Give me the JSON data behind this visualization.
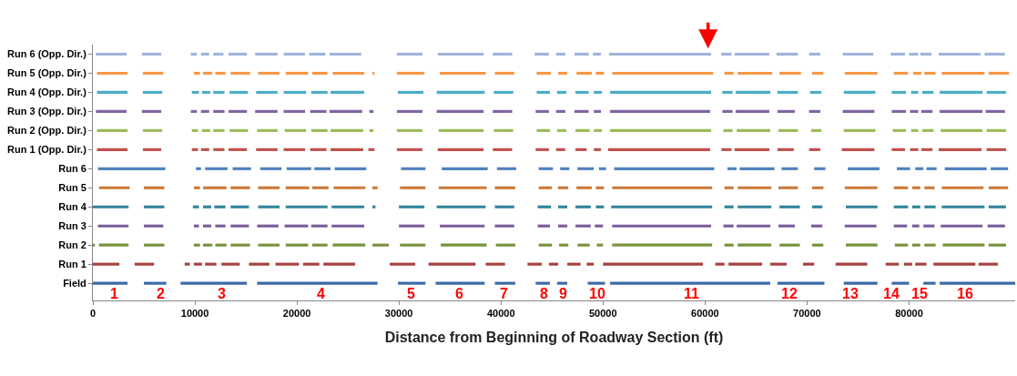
{
  "chart_data": {
    "type": "bar",
    "orientation": "horizontal",
    "xlabel": "Distance from Beginning of Roadway Section (ft)",
    "xlim": [
      0,
      90400
    ],
    "xticks": [
      0,
      10000,
      20000,
      30000,
      40000,
      50000,
      60000,
      70000,
      80000
    ],
    "categories": [
      "Run 6 (Opp. Dir.)",
      "Run 5 (Opp. Dir.)",
      "Run 4 (Opp. Dir.)",
      "Run 3 (Opp. Dir.)",
      "Run 2 (Opp. Dir.)",
      "Run 1 (Opp. Dir.)",
      "Run 6",
      "Run 5",
      "Run 4",
      "Run 3",
      "Run 2",
      "Run 1",
      "Field"
    ],
    "series": [
      {
        "colors": [
          "#9fb4db",
          "#f79646",
          "#4bacc6",
          "#8064a2",
          "#9bbb59",
          "#c0504d",
          "#4f81bd",
          "#cc7a38",
          "#31849b",
          "#7a5d99",
          "#77933c",
          "#a5413e",
          "#3c6aa8"
        ],
        "base": [
          300,
          400,
          400,
          300,
          400,
          400,
          500,
          600,
          0,
          500,
          0,
          0,
          0
        ],
        "values": [
          3000,
          3000,
          3000,
          3000,
          3000,
          3000,
          6600,
          3000,
          3500,
          3000,
          200,
          2600,
          3400
        ]
      },
      {
        "colors": [
          "#9fb4db",
          "#f79646",
          "#4bacc6",
          "#8064a2",
          "#9bbb59",
          "#c0504d",
          "#4f81bd",
          "#cc7a38",
          "#31849b",
          "#7a5d99",
          "#77933c",
          "#a5413e",
          "#3c6aa8"
        ],
        "base": [
          4800,
          4900,
          4900,
          4800,
          4900,
          4900,
          10100,
          5000,
          5000,
          5000,
          600,
          4100,
          5000
        ],
        "values": [
          1900,
          2000,
          1900,
          1900,
          1900,
          1800,
          500,
          2000,
          2000,
          1900,
          2900,
          1900,
          2200
        ]
      },
      {
        "colors": [
          "#9fb4db",
          "#f79646",
          "#4bacc6",
          "#8064a2",
          "#9bbb59",
          "#c0504d",
          "#4f81bd",
          "#cc7a38",
          "#31849b",
          "#7a5d99",
          "#77933c",
          "#a5413e",
          "#3c6aa8"
        ],
        "base": [
          9600,
          9900,
          9700,
          9600,
          9700,
          9700,
          11000,
          9900,
          9800,
          9900,
          5000,
          9000,
          8600
        ],
        "values": [
          600,
          600,
          700,
          600,
          600,
          600,
          2200,
          600,
          600,
          500,
          2000,
          500,
          6500
        ]
      },
      {
        "colors": [
          "#9fb4db",
          "#f79646",
          "#4bacc6",
          "#8064a2",
          "#9bbb59",
          "#c0504d",
          "#4f81bd",
          "#cc7a38",
          "#31849b",
          "#7a5d99",
          "#77933c",
          "#a5413e",
          "#3c6aa8"
        ],
        "base": [
          10600,
          10800,
          10700,
          10600,
          10700,
          10600,
          13700,
          10800,
          10800,
          10800,
          9900,
          9900,
          16100
        ],
        "values": [
          800,
          900,
          800,
          800,
          800,
          800,
          1800,
          2300,
          800,
          800,
          600,
          800,
          11800
        ]
      },
      {
        "colors": [
          "#9fb4db",
          "#f79646",
          "#4bacc6",
          "#8064a2",
          "#9bbb59",
          "#c0504d",
          "#4f81bd",
          "#cc7a38",
          "#31849b",
          "#7a5d99",
          "#77933c",
          "#a5413e",
          "#3c6aa8"
        ],
        "base": [
          11800,
          12000,
          11800,
          11800,
          11800,
          11800,
          16400,
          13500,
          11900,
          12000,
          10800,
          11000,
          29900
        ],
        "values": [
          1000,
          1000,
          1100,
          1100,
          1100,
          1100,
          2100,
          1900,
          1100,
          1000,
          900,
          1100,
          2700
        ]
      },
      {
        "colors": [
          "#9fb4db",
          "#f79646",
          "#4bacc6",
          "#8064a2",
          "#9bbb59",
          "#c0504d",
          "#4f81bd",
          "#cc7a38",
          "#31849b",
          "#7a5d99",
          "#77933c",
          "#a5413e",
          "#3c6aa8"
        ],
        "base": [
          13300,
          13500,
          13400,
          13300,
          13400,
          13300,
          19000,
          16200,
          13500,
          13500,
          12000,
          12600,
          33600
        ],
        "values": [
          1800,
          1900,
          1800,
          1800,
          1800,
          1800,
          2400,
          2100,
          1800,
          1800,
          1100,
          1800,
          4800
        ]
      },
      {
        "colors": [
          "#9fb4db",
          "#f79646",
          "#4bacc6",
          "#8064a2",
          "#9bbb59",
          "#c0504d",
          "#4f81bd",
          "#cc7a38",
          "#31849b",
          "#7a5d99",
          "#77933c",
          "#a5413e",
          "#3c6aa8"
        ],
        "base": [
          15900,
          16200,
          16000,
          15900,
          16100,
          16000,
          21700,
          18900,
          16200,
          16100,
          13500,
          15300,
          39400
        ],
        "values": [
          2200,
          2100,
          2100,
          2200,
          2000,
          2100,
          1600,
          2300,
          2100,
          2100,
          1900,
          2000,
          2000
        ]
      },
      {
        "colors": [
          "#9fb4db",
          "#f79646",
          "#4bacc6",
          "#8064a2",
          "#9bbb59",
          "#c0504d",
          "#4f81bd",
          "#cc7a38",
          "#31849b",
          "#7a5d99",
          "#77933c",
          "#a5413e",
          "#3c6aa8"
        ],
        "base": [
          18700,
          18900,
          18700,
          18700,
          18800,
          18700,
          23700,
          21500,
          18900,
          18800,
          16200,
          17900,
          43400
        ],
        "values": [
          2100,
          2200,
          2200,
          2100,
          2100,
          2100,
          3100,
          1600,
          4100,
          2300,
          2100,
          2300,
          1400
        ]
      },
      {
        "colors": [
          "#9fb4db",
          "#f79646",
          "#4bacc6",
          "#8064a2",
          "#9bbb59",
          "#c0504d",
          "#4f81bd",
          "#cc7a38",
          "#31849b",
          "#7a5d99",
          "#77933c",
          "#a5413e",
          "#3c6aa8"
        ],
        "base": [
          21200,
          21500,
          21400,
          21300,
          21400,
          21300,
          30200,
          23600,
          23400,
          21400,
          18900,
          20600,
          45500
        ],
        "values": [
          1600,
          1500,
          1600,
          1600,
          1600,
          1600,
          2400,
          3100,
          3200,
          1600,
          2200,
          1600,
          1000
        ]
      },
      {
        "colors": [
          "#9fb4db",
          "#f79646",
          "#4bacc6",
          "#8064a2",
          "#9bbb59",
          "#c0504d",
          "#4f81bd",
          "#cc7a38",
          "#31849b",
          "#7a5d99",
          "#77933c",
          "#a5413e",
          "#3c6aa8"
        ],
        "base": [
          23200,
          23500,
          23300,
          23200,
          23300,
          23300,
          34200,
          27400,
          27400,
          23400,
          21500,
          22600,
          48500
        ],
        "values": [
          3100,
          3100,
          3300,
          3200,
          3200,
          3200,
          4500,
          500,
          300,
          3200,
          1500,
          3100,
          1700
        ]
      },
      {
        "colors": [
          "#9fb4db",
          "#f79646",
          "#4bacc6",
          "#8064a2",
          "#9bbb59",
          "#c0504d",
          "#4f81bd",
          "#cc7a38",
          "#31849b",
          "#7a5d99",
          "#77933c",
          "#a5413e",
          "#3c6aa8"
        ],
        "base": [
          29800,
          27400,
          29900,
          27100,
          27100,
          27000,
          39600,
          30100,
          30000,
          30000,
          23500,
          29100,
          50700
        ],
        "values": [
          2500,
          200,
          2500,
          400,
          400,
          600,
          1900,
          2500,
          2500,
          2500,
          3200,
          2500,
          15700
        ]
      },
      {
        "colors": [
          "#9fb4db",
          "#f79646",
          "#4bacc6",
          "#8064a2",
          "#9bbb59",
          "#c0504d",
          "#4f81bd",
          "#cc7a38",
          "#31849b",
          "#7a5d99",
          "#77933c",
          "#a5413e",
          "#3c6aa8"
        ],
        "base": [
          33800,
          29800,
          33700,
          29800,
          29800,
          29800,
          43700,
          33900,
          33700,
          34000,
          27400,
          32900,
          67100
        ],
        "values": [
          4500,
          2700,
          4700,
          2500,
          2500,
          2500,
          1400,
          4700,
          4800,
          4400,
          1600,
          4600,
          4600
        ]
      },
      {
        "colors": [
          "#9fb4db",
          "#f79646",
          "#4bacc6",
          "#8064a2",
          "#9bbb59",
          "#c0504d",
          "#4f81bd",
          "#cc7a38",
          "#31849b",
          "#7a5d99",
          "#77933c",
          "#a5413e",
          "#3c6aa8"
        ],
        "base": [
          39200,
          34000,
          39300,
          33700,
          33900,
          33800,
          45800,
          39400,
          39400,
          39400,
          30100,
          38500,
          73600
        ],
        "values": [
          1900,
          4500,
          1900,
          4600,
          4400,
          4500,
          900,
          2000,
          1900,
          1900,
          2500,
          1900,
          3300
        ]
      },
      {
        "colors": [
          "#9fb4db",
          "#f79646",
          "#4bacc6",
          "#8064a2",
          "#9bbb59",
          "#c0504d",
          "#4f81bd",
          "#cc7a38",
          "#31849b",
          "#7a5d99",
          "#77933c",
          "#a5413e",
          "#3c6aa8"
        ],
        "base": [
          43300,
          39400,
          43500,
          39200,
          39300,
          39200,
          47500,
          43700,
          43600,
          43600,
          34100,
          42600,
          78300
        ],
        "values": [
          1400,
          1900,
          1300,
          1900,
          1900,
          1900,
          1600,
          1300,
          1300,
          1200,
          4500,
          1400,
          1700
        ]
      },
      {
        "colors": [
          "#9fb4db",
          "#f79646",
          "#4bacc6",
          "#8064a2",
          "#9bbb59",
          "#c0504d",
          "#4f81bd",
          "#cc7a38",
          "#31849b",
          "#7a5d99",
          "#77933c",
          "#a5413e",
          "#3c6aa8"
        ],
        "base": [
          45400,
          43500,
          45500,
          43400,
          43500,
          43400,
          49600,
          45600,
          45600,
          45600,
          39500,
          44700,
          81400
        ],
        "values": [
          900,
          1400,
          900,
          1300,
          1300,
          1300,
          700,
          1000,
          900,
          900,
          1900,
          900,
          1200
        ]
      },
      {
        "colors": [
          "#9fb4db",
          "#f79646",
          "#4bacc6",
          "#8064a2",
          "#9bbb59",
          "#c0504d",
          "#4f81bd",
          "#cc7a38",
          "#31849b",
          "#7a5d99",
          "#77933c",
          "#a5413e",
          "#3c6aa8"
        ],
        "base": [
          47200,
          45600,
          47300,
          45400,
          45500,
          45400,
          51100,
          47400,
          47300,
          47300,
          43700,
          46500,
          83000
        ],
        "values": [
          1400,
          900,
          1300,
          900,
          900,
          900,
          9800,
          1500,
          1500,
          1500,
          1300,
          1300,
          7400
        ]
      },
      {
        "colors": [
          "#9fb4db",
          "#f79646",
          "#4bacc6",
          "#8064a2",
          "#9bbb59",
          "#c0504d",
          "#4f81bd",
          "#cc7a38",
          "#31849b",
          "#7a5d99",
          "#77933c",
          "#a5413e",
          "#3c6aa8"
        ],
        "base": [
          49000,
          47400,
          49100,
          47200,
          47300,
          47300,
          62200,
          49300,
          49300,
          49200,
          45700,
          48400,
          null
        ],
        "values": [
          800,
          1500,
          800,
          1400,
          1400,
          1100,
          900,
          800,
          800,
          800,
          900,
          700,
          null
        ]
      },
      {
        "colors": [
          "#9fb4db",
          "#f79646",
          "#4bacc6",
          "#8064a2",
          "#9bbb59",
          "#c0504d",
          "#4f81bd",
          "#cc7a38",
          "#31849b",
          "#7a5d99",
          "#77933c",
          "#a5413e",
          "#3c6aa8"
        ],
        "base": [
          50600,
          49300,
          50700,
          49100,
          49100,
          49100,
          63400,
          50900,
          50800,
          50900,
          47500,
          50000,
          null
        ],
        "values": [
          10000,
          800,
          9900,
          700,
          800,
          700,
          3400,
          9800,
          9900,
          9700,
          1200,
          9800,
          null
        ]
      },
      {
        "colors": [
          "#9fb4db",
          "#f79646",
          "#4bacc6",
          "#8064a2",
          "#9bbb59",
          "#c0504d",
          "#4f81bd",
          "#cc7a38",
          "#31849b",
          "#7a5d99",
          "#77933c",
          "#a5413e",
          "#3c6aa8"
        ],
        "base": [
          61600,
          50900,
          61700,
          50700,
          50700,
          50500,
          67500,
          61900,
          61900,
          61800,
          49400,
          61000,
          null
        ],
        "values": [
          1000,
          9900,
          1000,
          9800,
          9900,
          10000,
          1600,
          900,
          900,
          1000,
          600,
          900,
          null
        ]
      },
      {
        "colors": [
          "#9fb4db",
          "#f79646",
          "#4bacc6",
          "#8064a2",
          "#9bbb59",
          "#c0504d",
          "#4f81bd",
          "#cc7a38",
          "#31849b",
          "#7a5d99",
          "#77933c",
          "#a5413e",
          "#3c6aa8"
        ],
        "base": [
          62900,
          61900,
          63000,
          61700,
          61800,
          61600,
          70700,
          63200,
          63200,
          63100,
          50900,
          62300,
          null
        ],
        "values": [
          3400,
          900,
          3400,
          1000,
          900,
          1000,
          1100,
          3300,
          3300,
          3300,
          9800,
          3300,
          null
        ]
      },
      {
        "colors": [
          "#9fb4db",
          "#f79646",
          "#4bacc6",
          "#8064a2",
          "#9bbb59",
          "#c0504d",
          "#4f81bd",
          "#cc7a38",
          "#31849b",
          "#7a5d99",
          "#77933c",
          "#a5413e",
          "#3c6aa8"
        ],
        "base": [
          67000,
          63200,
          67100,
          63000,
          63100,
          62900,
          74000,
          67200,
          67300,
          67200,
          61900,
          66400,
          null
        ],
        "values": [
          2100,
          3400,
          2000,
          3300,
          3300,
          3400,
          3100,
          1900,
          2000,
          1600,
          900,
          1600,
          null
        ]
      },
      {
        "colors": [
          "#9fb4db",
          "#f79646",
          "#4bacc6",
          "#8064a2",
          "#9bbb59",
          "#c0504d",
          "#4f81bd",
          "#cc7a38",
          "#31849b",
          "#7a5d99",
          "#77933c",
          "#a5413e",
          "#3c6aa8"
        ],
        "base": [
          70200,
          67300,
          70300,
          67100,
          67200,
          67100,
          78800,
          70500,
          70500,
          70400,
          63200,
          69600,
          null
        ],
        "values": [
          1100,
          2100,
          1100,
          1700,
          1900,
          1600,
          1300,
          1100,
          1000,
          1100,
          3300,
          1100,
          null
        ]
      },
      {
        "colors": [
          "#9fb4db",
          "#f79646",
          "#4bacc6",
          "#8064a2",
          "#9bbb59",
          "#c0504d",
          "#4f81bd",
          "#cc7a38",
          "#31849b",
          "#7a5d99",
          "#77933c",
          "#a5413e",
          "#3c6aa8"
        ],
        "base": [
          73500,
          70500,
          73600,
          70200,
          70400,
          70200,
          80600,
          73700,
          73800,
          73700,
          67300,
          72800,
          null
        ],
        "values": [
          3000,
          1100,
          3100,
          1100,
          1000,
          1100,
          800,
          3200,
          3100,
          3100,
          2000,
          3100,
          null
        ]
      },
      {
        "colors": [
          "#9fb4db",
          "#f79646",
          "#4bacc6",
          "#8064a2",
          "#9bbb59",
          "#c0504d",
          "#4f81bd",
          "#cc7a38",
          "#31849b",
          "#7a5d99",
          "#77933c",
          "#a5413e",
          "#3c6aa8"
        ],
        "base": [
          78200,
          73700,
          78300,
          73500,
          73600,
          73400,
          81700,
          78500,
          78500,
          78500,
          70500,
          77700,
          null
        ],
        "values": [
          1400,
          3200,
          1400,
          3100,
          3100,
          3200,
          1000,
          1400,
          1400,
          1300,
          1100,
          1300,
          null
        ]
      },
      {
        "colors": [
          "#9fb4db",
          "#f79646",
          "#4bacc6",
          "#8064a2",
          "#9bbb59",
          "#c0504d",
          "#4f81bd",
          "#cc7a38",
          "#31849b",
          "#7a5d99",
          "#77933c",
          "#a5413e",
          "#3c6aa8"
        ],
        "base": [
          80000,
          78500,
          80200,
          78300,
          78400,
          78300,
          83500,
          80300,
          80300,
          80300,
          73800,
          79500,
          null
        ],
        "values": [
          900,
          1400,
          700,
          1400,
          1300,
          1300,
          4100,
          800,
          800,
          700,
          3100,
          800,
          null
        ]
      },
      {
        "colors": [
          "#9fb4db",
          "#f79646",
          "#4bacc6",
          "#8064a2",
          "#9bbb59",
          "#c0504d",
          "#4f81bd",
          "#cc7a38",
          "#31849b",
          "#7a5d99",
          "#77933c",
          "#a5413e",
          "#3c6aa8"
        ],
        "base": [
          81100,
          80400,
          81300,
          80100,
          80200,
          80100,
          88000,
          81500,
          81500,
          81400,
          78600,
          80600,
          null
        ],
        "values": [
          1100,
          800,
          1100,
          800,
          700,
          800,
          1700,
          1000,
          1100,
          1100,
          1300,
          1100,
          null
        ]
      },
      {
        "colors": [
          "#9fb4db",
          "#f79646",
          "#4bacc6",
          "#8064a2",
          "#9bbb59",
          "#c0504d",
          "#4f81bd",
          "#cc7a38",
          "#31849b",
          "#7a5d99",
          "#77933c",
          "#a5413e",
          "#3c6aa8"
        ],
        "base": [
          82900,
          81500,
          83000,
          81200,
          81300,
          81200,
          null,
          83200,
          83200,
          83100,
          80300,
          82400,
          null
        ],
        "values": [
          4100,
          1100,
          4200,
          1100,
          1100,
          1100,
          null,
          4100,
          4200,
          4100,
          800,
          4100,
          null
        ]
      },
      {
        "colors": [
          "#9fb4db",
          "#f79646",
          "#4bacc6",
          "#8064a2",
          "#9bbb59",
          "#c0504d",
          "#4f81bd",
          "#cc7a38",
          "#31849b",
          "#7a5d99",
          "#77933c",
          "#a5413e",
          "#3c6aa8"
        ],
        "base": [
          87400,
          83200,
          87600,
          83000,
          83100,
          82900,
          null,
          87800,
          87800,
          87700,
          81500,
          86800,
          null
        ],
        "values": [
          2000,
          4200,
          1900,
          4200,
          4100,
          4200,
          null,
          1900,
          1700,
          1700,
          1100,
          1900,
          null
        ]
      },
      {
        "colors": [
          "#9fb4db",
          "#f79646",
          "#4bacc6",
          "#8064a2",
          "#9bbb59",
          "#c0504d",
          "#4f81bd",
          "#cc7a38",
          "#31849b",
          "#7a5d99",
          "#77933c",
          "#a5413e",
          "#3c6aa8"
        ],
        "base": [
          null,
          87800,
          null,
          87500,
          87600,
          87600,
          null,
          null,
          null,
          null,
          83300,
          null,
          null
        ],
        "values": [
          null,
          2000,
          null,
          1900,
          1900,
          1900,
          null,
          null,
          null,
          null,
          4100,
          null,
          null
        ]
      },
      {
        "colors": [
          "#9fb4db",
          "#f79646",
          "#4bacc6",
          "#8064a2",
          "#9bbb59",
          "#c0504d",
          "#4f81bd",
          "#cc7a38",
          "#31849b",
          "#7a5d99",
          "#77933c",
          "#a5413e",
          "#3c6aa8"
        ],
        "base": [
          null,
          null,
          null,
          null,
          null,
          null,
          null,
          null,
          null,
          null,
          87800,
          null,
          null
        ],
        "values": [
          null,
          null,
          null,
          null,
          null,
          null,
          null,
          null,
          null,
          null,
          1700,
          null,
          null
        ]
      }
    ],
    "annotations": [
      "1",
      "2",
      "3",
      "4",
      "5",
      "6",
      "7",
      "8",
      "9",
      "10",
      "11",
      "12",
      "13",
      "14",
      "15",
      "16"
    ]
  }
}
